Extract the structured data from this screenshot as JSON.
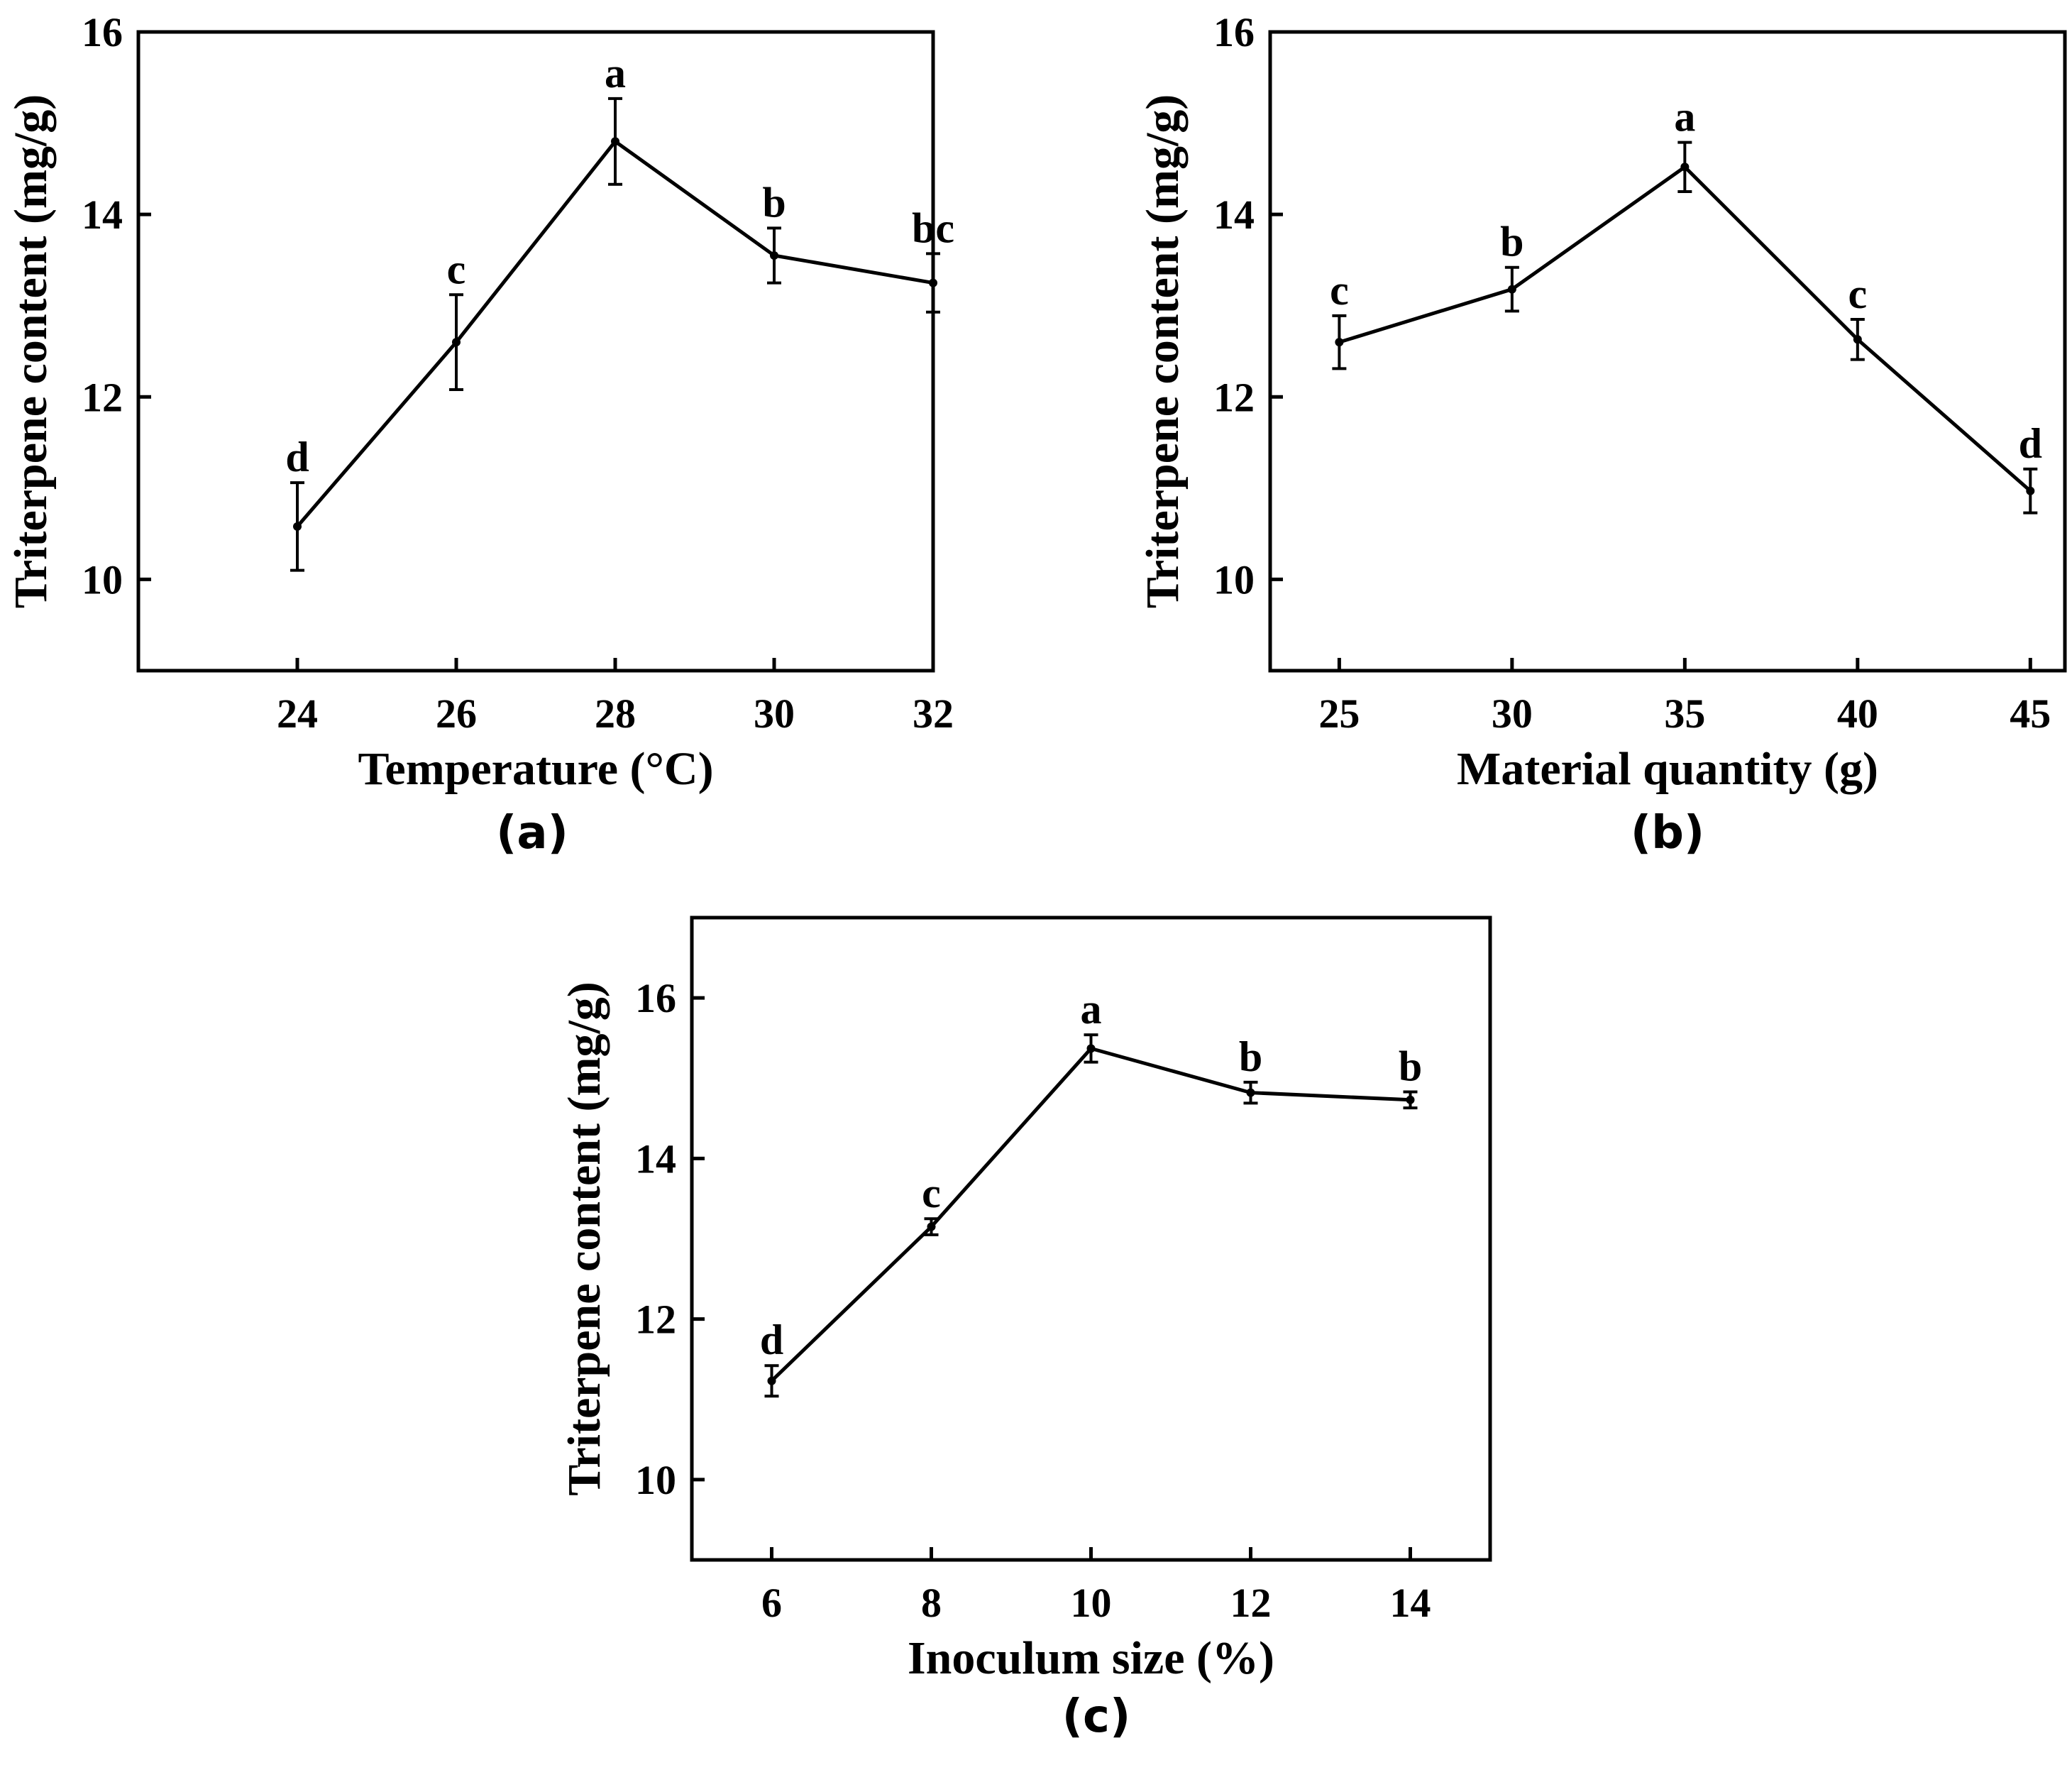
{
  "chart_data": [
    {
      "type": "line",
      "panel": "(a)",
      "xlabel": "Temperature (°C)",
      "ylabel": "Triterpene content (mg/g)",
      "x": [
        24,
        26,
        28,
        30,
        32
      ],
      "y": [
        10.58,
        12.6,
        14.8,
        13.55,
        13.25
      ],
      "error": [
        0.48,
        0.52,
        0.47,
        0.3,
        0.32
      ],
      "significance": [
        "d",
        "c",
        "a",
        "b",
        "bc"
      ],
      "xlim": [
        22,
        32
      ],
      "ylim": [
        9,
        16
      ],
      "yticks": [
        10,
        12,
        14,
        16
      ]
    },
    {
      "type": "line",
      "panel": "(b)",
      "xlabel": "Material quantity (g)",
      "ylabel": "Triterpene content (mg/g)",
      "x": [
        25,
        30,
        35,
        40,
        45
      ],
      "y": [
        12.6,
        13.18,
        14.52,
        12.63,
        10.97
      ],
      "error": [
        0.29,
        0.24,
        0.27,
        0.22,
        0.24
      ],
      "significance": [
        "c",
        "b",
        "a",
        "c",
        "d"
      ],
      "xlim": [
        23,
        46
      ],
      "ylim": [
        9,
        16
      ],
      "yticks": [
        10,
        12,
        14,
        16
      ]
    },
    {
      "type": "line",
      "panel": "(c)",
      "xlabel": "Inoculum size (%)",
      "ylabel": "Triterpene content (mg/g)",
      "x": [
        6,
        8,
        10,
        12,
        14
      ],
      "y": [
        11.23,
        13.15,
        15.37,
        14.82,
        14.73
      ],
      "error": [
        0.19,
        0.1,
        0.17,
        0.13,
        0.1
      ],
      "significance": [
        "d",
        "c",
        "a",
        "b",
        "b"
      ],
      "xlim": [
        5,
        15
      ],
      "ylim": [
        9,
        17
      ],
      "yticks": [
        10,
        12,
        14,
        16
      ]
    }
  ]
}
